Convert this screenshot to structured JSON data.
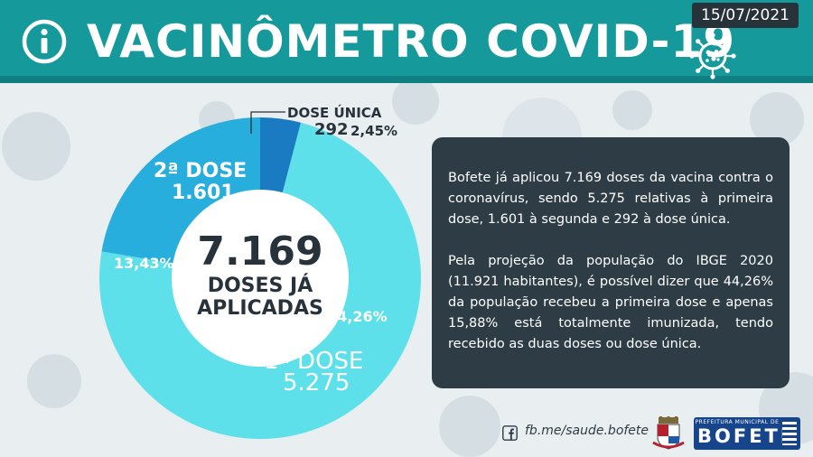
{
  "header": {
    "title": "VACINÔMETRO COVID-19",
    "date": "15/07/2021"
  },
  "chart_data": {
    "type": "pie",
    "categories": [
      "1ª DOSE",
      "2ª DOSE",
      "DOSE ÚNICA"
    ],
    "values": [
      5275,
      1601,
      292
    ],
    "counts_label": [
      "5.275",
      "1.601",
      "292"
    ],
    "percent_labels": [
      "44,26%",
      "13,43%",
      "2,45%"
    ],
    "colors": [
      "#5ee0ea",
      "#27aedd",
      "#1b7bc2"
    ],
    "center": {
      "total": "7.169",
      "line1": "DOSES JÁ",
      "line2": "APLICADAS"
    }
  },
  "info": {
    "paragraph1": "Bofete já aplicou 7.169 doses da vacina contra o coronavírus, sendo 5.275 relativas à primeira dose, 1.601 à segunda e 292 à dose única.",
    "paragraph2": "Pela projeção da população do IBGE 2020 (11.921 habitantes), é possível dizer que 44,26% da população recebeu a primeira dose e apenas 15,88% está totalmente imunizada, tendo recebido as duas doses ou dose única."
  },
  "footer": {
    "facebook": "fb.me/saude.bofete",
    "prefeitura_small": "PREFEITURA MUNICIPAL DE",
    "prefeitura_big": "BOFETE"
  },
  "icons": [
    "info-icon",
    "virus-icon",
    "facebook-icon",
    "city-crest-icon",
    "flag-icon"
  ]
}
